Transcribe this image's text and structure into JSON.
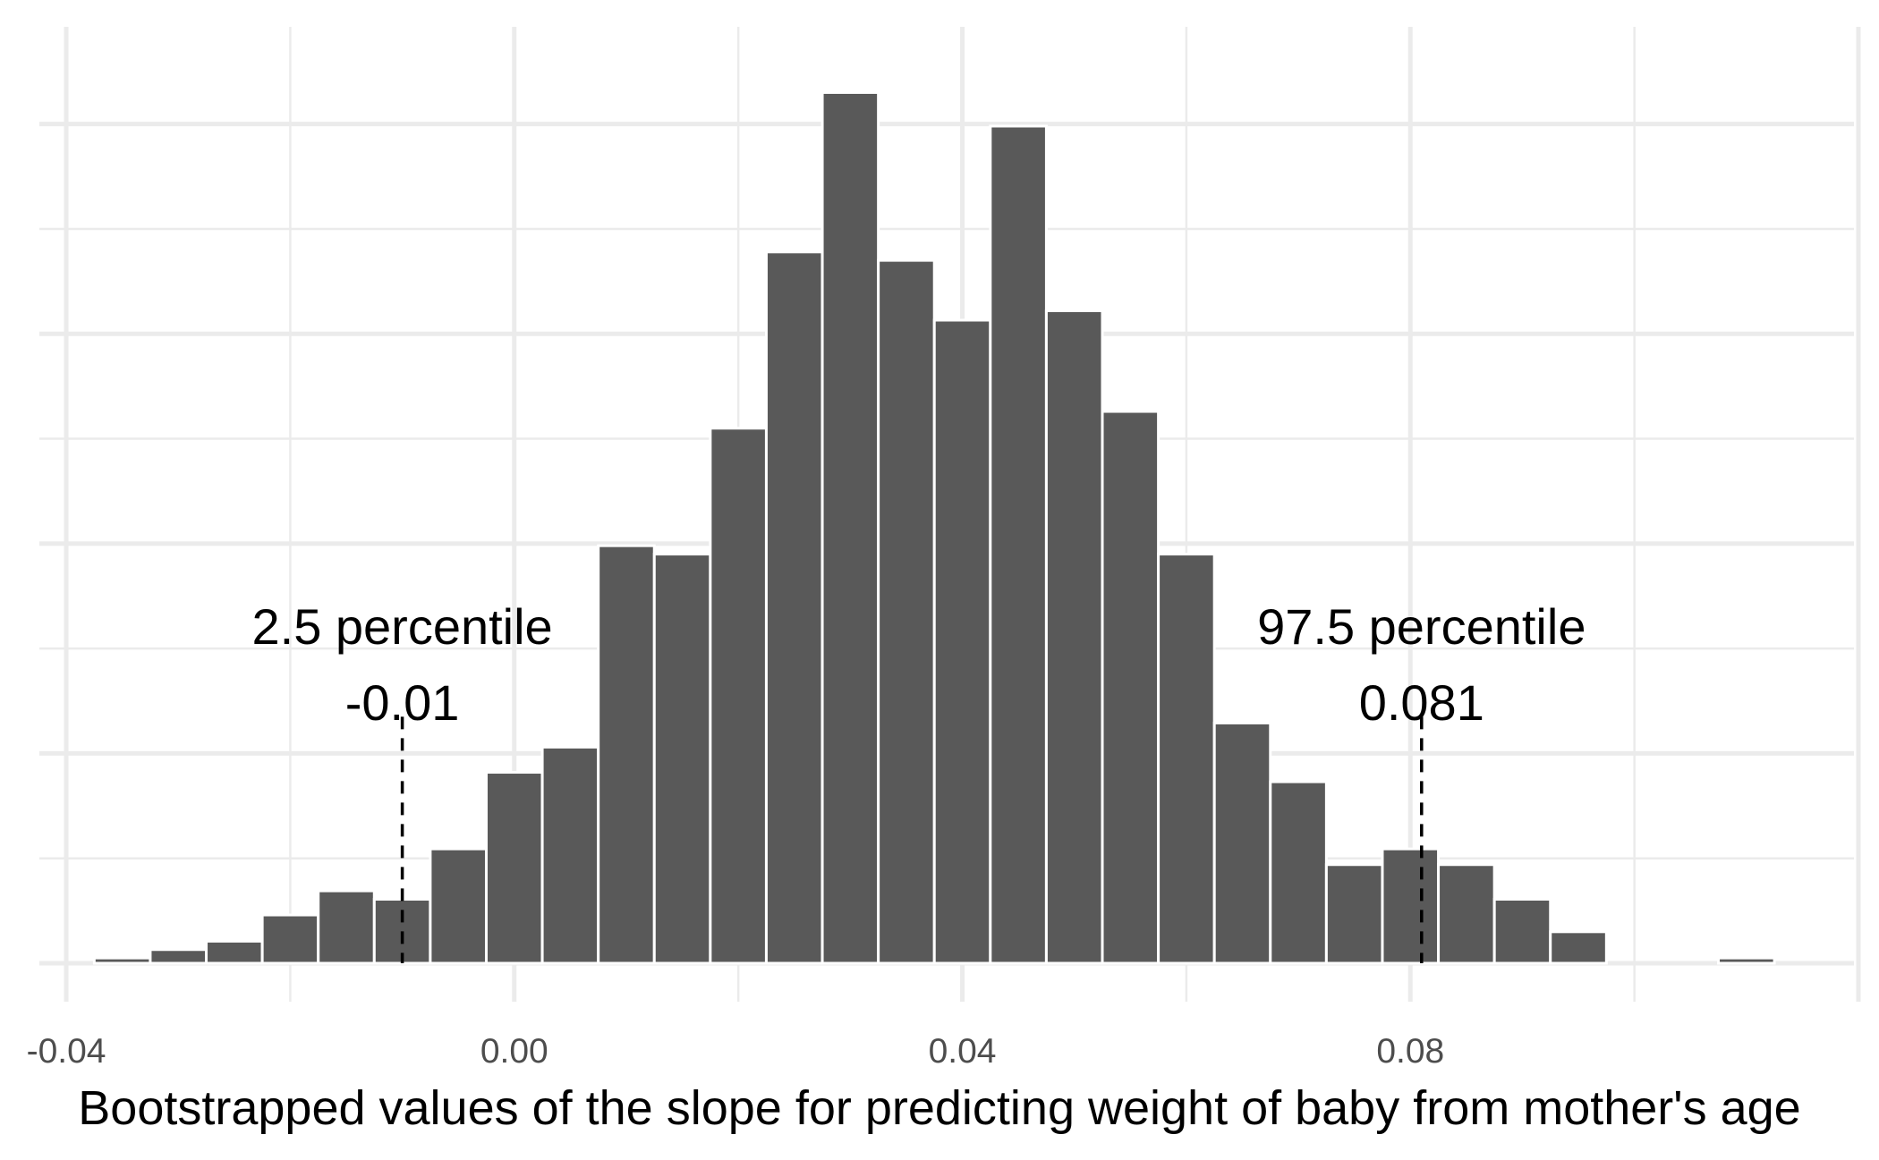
{
  "chart_data": {
    "type": "bar",
    "subtype": "histogram",
    "title": "",
    "xlabel": "Bootstrapped values of the slope for predicting weight of baby from mother's age",
    "ylabel": "",
    "xlim": [
      -0.0424,
      0.1196
    ],
    "ylim": [
      0,
      85
    ],
    "x_ticks": [
      "-0.04",
      "0.00",
      "0.04",
      "0.08"
    ],
    "x_tick_values": [
      -0.04,
      0.0,
      0.04,
      0.08
    ],
    "y_ticks_visible": false,
    "y_gridlines_major": [
      0,
      20,
      40,
      60,
      80
    ],
    "y_gridlines_minor": [
      10,
      30,
      50,
      70
    ],
    "grid": true,
    "bin_width": 0.005,
    "bin_start": -0.0375,
    "values": [
      0.5,
      1.3,
      2.1,
      4.6,
      6.9,
      6.1,
      10.9,
      18.2,
      20.6,
      39.8,
      39.0,
      51.0,
      67.8,
      83.0,
      67.0,
      61.3,
      79.8,
      62.2,
      52.6,
      39.0,
      22.9,
      17.3,
      9.4,
      10.9,
      9.4,
      6.1,
      3.0,
      0,
      0,
      0.5
    ],
    "bar_color": "#595959",
    "bar_outline": "#ffffff",
    "annotations": [
      {
        "label": "2.5 percentile",
        "value_label": "-0.01",
        "x": -0.01
      },
      {
        "label": "97.5 percentile",
        "value_label": "0.081",
        "x": 0.081
      }
    ]
  }
}
